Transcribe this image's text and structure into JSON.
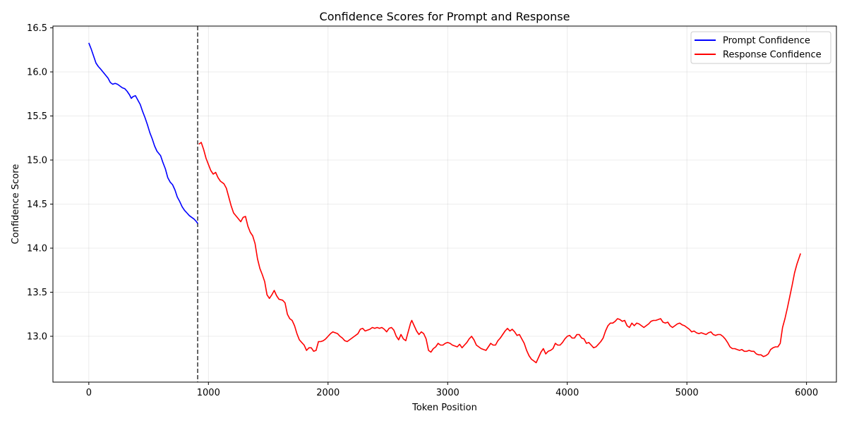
{
  "chart_data": {
    "type": "line",
    "title": "Confidence Scores for Prompt and Response",
    "xlabel": "Token Position",
    "ylabel": "Confidence Score",
    "xlim": [
      -300,
      6250
    ],
    "ylim": [
      12.48,
      16.52
    ],
    "x_ticks": [
      0,
      1000,
      2000,
      3000,
      4000,
      5000,
      6000
    ],
    "y_ticks": [
      13.0,
      13.5,
      14.0,
      14.5,
      15.0,
      15.5,
      16.0,
      16.5
    ],
    "x_tick_labels": [
      "0",
      "1000",
      "2000",
      "3000",
      "4000",
      "5000",
      "6000"
    ],
    "y_tick_labels": [
      "13.0",
      "13.5",
      "14.0",
      "14.5",
      "15.0",
      "15.5",
      "16.0",
      "16.5"
    ],
    "grid": true,
    "legend_position": "top-right",
    "divider_x": 910,
    "series": [
      {
        "name": "Prompt Confidence",
        "color": "#0000ff",
        "points": [
          [
            0,
            16.33
          ],
          [
            20,
            16.26
          ],
          [
            40,
            16.18
          ],
          [
            60,
            16.1
          ],
          [
            80,
            16.06
          ],
          [
            100,
            16.03
          ],
          [
            130,
            15.98
          ],
          [
            160,
            15.93
          ],
          [
            180,
            15.88
          ],
          [
            200,
            15.86
          ],
          [
            220,
            15.87
          ],
          [
            240,
            15.86
          ],
          [
            260,
            15.84
          ],
          [
            280,
            15.82
          ],
          [
            300,
            15.81
          ],
          [
            320,
            15.78
          ],
          [
            340,
            15.74
          ],
          [
            355,
            15.7
          ],
          [
            370,
            15.72
          ],
          [
            390,
            15.73
          ],
          [
            410,
            15.68
          ],
          [
            430,
            15.63
          ],
          [
            450,
            15.55
          ],
          [
            470,
            15.48
          ],
          [
            490,
            15.4
          ],
          [
            510,
            15.31
          ],
          [
            530,
            15.24
          ],
          [
            550,
            15.16
          ],
          [
            570,
            15.1
          ],
          [
            600,
            15.05
          ],
          [
            620,
            14.97
          ],
          [
            640,
            14.9
          ],
          [
            660,
            14.8
          ],
          [
            680,
            14.75
          ],
          [
            700,
            14.72
          ],
          [
            720,
            14.66
          ],
          [
            740,
            14.58
          ],
          [
            760,
            14.53
          ],
          [
            780,
            14.47
          ],
          [
            800,
            14.43
          ],
          [
            820,
            14.4
          ],
          [
            840,
            14.37
          ],
          [
            860,
            14.35
          ],
          [
            880,
            14.33
          ],
          [
            900,
            14.3
          ],
          [
            910,
            14.28
          ]
        ]
      },
      {
        "name": "Response Confidence",
        "color": "#ff0000",
        "points": [
          [
            920,
            15.18
          ],
          [
            940,
            15.2
          ],
          [
            960,
            15.12
          ],
          [
            980,
            15.02
          ],
          [
            1000,
            14.95
          ],
          [
            1020,
            14.88
          ],
          [
            1040,
            14.84
          ],
          [
            1060,
            14.86
          ],
          [
            1080,
            14.8
          ],
          [
            1100,
            14.76
          ],
          [
            1130,
            14.73
          ],
          [
            1150,
            14.68
          ],
          [
            1170,
            14.58
          ],
          [
            1190,
            14.48
          ],
          [
            1210,
            14.4
          ],
          [
            1240,
            14.35
          ],
          [
            1270,
            14.3
          ],
          [
            1290,
            14.35
          ],
          [
            1310,
            14.36
          ],
          [
            1330,
            14.25
          ],
          [
            1350,
            14.18
          ],
          [
            1370,
            14.14
          ],
          [
            1390,
            14.05
          ],
          [
            1410,
            13.88
          ],
          [
            1430,
            13.77
          ],
          [
            1450,
            13.7
          ],
          [
            1470,
            13.62
          ],
          [
            1490,
            13.47
          ],
          [
            1510,
            13.43
          ],
          [
            1530,
            13.47
          ],
          [
            1550,
            13.52
          ],
          [
            1570,
            13.46
          ],
          [
            1590,
            13.42
          ],
          [
            1620,
            13.41
          ],
          [
            1640,
            13.38
          ],
          [
            1660,
            13.25
          ],
          [
            1680,
            13.2
          ],
          [
            1700,
            13.18
          ],
          [
            1720,
            13.12
          ],
          [
            1740,
            13.03
          ],
          [
            1760,
            12.96
          ],
          [
            1780,
            12.93
          ],
          [
            1800,
            12.9
          ],
          [
            1820,
            12.84
          ],
          [
            1840,
            12.87
          ],
          [
            1860,
            12.87
          ],
          [
            1880,
            12.83
          ],
          [
            1900,
            12.84
          ],
          [
            1920,
            12.94
          ],
          [
            1940,
            12.94
          ],
          [
            1960,
            12.95
          ],
          [
            1980,
            12.97
          ],
          [
            2000,
            13.0
          ],
          [
            2020,
            13.03
          ],
          [
            2040,
            13.05
          ],
          [
            2060,
            13.04
          ],
          [
            2080,
            13.03
          ],
          [
            2100,
            13.0
          ],
          [
            2120,
            12.98
          ],
          [
            2140,
            12.95
          ],
          [
            2160,
            12.94
          ],
          [
            2180,
            12.96
          ],
          [
            2200,
            12.98
          ],
          [
            2220,
            13.0
          ],
          [
            2250,
            13.03
          ],
          [
            2270,
            13.08
          ],
          [
            2290,
            13.09
          ],
          [
            2310,
            13.06
          ],
          [
            2330,
            13.07
          ],
          [
            2350,
            13.08
          ],
          [
            2370,
            13.1
          ],
          [
            2390,
            13.09
          ],
          [
            2410,
            13.1
          ],
          [
            2430,
            13.09
          ],
          [
            2450,
            13.1
          ],
          [
            2470,
            13.08
          ],
          [
            2490,
            13.05
          ],
          [
            2510,
            13.09
          ],
          [
            2530,
            13.1
          ],
          [
            2550,
            13.07
          ],
          [
            2570,
            13.0
          ],
          [
            2590,
            12.96
          ],
          [
            2610,
            13.02
          ],
          [
            2630,
            12.97
          ],
          [
            2650,
            12.95
          ],
          [
            2670,
            13.05
          ],
          [
            2690,
            13.15
          ],
          [
            2700,
            13.18
          ],
          [
            2720,
            13.12
          ],
          [
            2740,
            13.06
          ],
          [
            2760,
            13.02
          ],
          [
            2780,
            13.05
          ],
          [
            2800,
            13.03
          ],
          [
            2820,
            12.97
          ],
          [
            2840,
            12.84
          ],
          [
            2860,
            12.82
          ],
          [
            2880,
            12.86
          ],
          [
            2900,
            12.88
          ],
          [
            2920,
            12.92
          ],
          [
            2940,
            12.9
          ],
          [
            2960,
            12.9
          ],
          [
            2980,
            12.92
          ],
          [
            3000,
            12.93
          ],
          [
            3020,
            12.92
          ],
          [
            3040,
            12.9
          ],
          [
            3060,
            12.89
          ],
          [
            3080,
            12.88
          ],
          [
            3100,
            12.91
          ],
          [
            3120,
            12.87
          ],
          [
            3140,
            12.9
          ],
          [
            3160,
            12.93
          ],
          [
            3180,
            12.97
          ],
          [
            3200,
            13.0
          ],
          [
            3220,
            12.96
          ],
          [
            3240,
            12.9
          ],
          [
            3260,
            12.88
          ],
          [
            3280,
            12.86
          ],
          [
            3300,
            12.85
          ],
          [
            3320,
            12.84
          ],
          [
            3340,
            12.88
          ],
          [
            3360,
            12.92
          ],
          [
            3380,
            12.9
          ],
          [
            3400,
            12.9
          ],
          [
            3420,
            12.95
          ],
          [
            3440,
            12.98
          ],
          [
            3460,
            13.02
          ],
          [
            3480,
            13.06
          ],
          [
            3500,
            13.09
          ],
          [
            3520,
            13.06
          ],
          [
            3540,
            13.08
          ],
          [
            3560,
            13.05
          ],
          [
            3580,
            13.01
          ],
          [
            3600,
            13.02
          ],
          [
            3620,
            12.97
          ],
          [
            3640,
            12.92
          ],
          [
            3660,
            12.84
          ],
          [
            3680,
            12.78
          ],
          [
            3700,
            12.74
          ],
          [
            3720,
            12.72
          ],
          [
            3740,
            12.7
          ],
          [
            3760,
            12.76
          ],
          [
            3780,
            12.82
          ],
          [
            3800,
            12.86
          ],
          [
            3820,
            12.8
          ],
          [
            3840,
            12.83
          ],
          [
            3860,
            12.84
          ],
          [
            3880,
            12.86
          ],
          [
            3900,
            12.92
          ],
          [
            3920,
            12.9
          ],
          [
            3940,
            12.9
          ],
          [
            3960,
            12.93
          ],
          [
            3980,
            12.97
          ],
          [
            4000,
            13.0
          ],
          [
            4020,
            13.01
          ],
          [
            4040,
            12.98
          ],
          [
            4060,
            12.98
          ],
          [
            4080,
            13.02
          ],
          [
            4100,
            13.02
          ],
          [
            4120,
            12.98
          ],
          [
            4140,
            12.97
          ],
          [
            4160,
            12.92
          ],
          [
            4180,
            12.93
          ],
          [
            4200,
            12.9
          ],
          [
            4220,
            12.87
          ],
          [
            4240,
            12.88
          ],
          [
            4260,
            12.91
          ],
          [
            4280,
            12.94
          ],
          [
            4300,
            12.98
          ],
          [
            4320,
            13.06
          ],
          [
            4340,
            13.12
          ],
          [
            4360,
            13.15
          ],
          [
            4380,
            13.15
          ],
          [
            4400,
            13.17
          ],
          [
            4420,
            13.2
          ],
          [
            4440,
            13.19
          ],
          [
            4460,
            13.17
          ],
          [
            4480,
            13.18
          ],
          [
            4500,
            13.12
          ],
          [
            4520,
            13.1
          ],
          [
            4540,
            13.15
          ],
          [
            4560,
            13.12
          ],
          [
            4580,
            13.15
          ],
          [
            4600,
            13.14
          ],
          [
            4620,
            13.12
          ],
          [
            4640,
            13.1
          ],
          [
            4660,
            13.12
          ],
          [
            4680,
            13.14
          ],
          [
            4700,
            13.17
          ],
          [
            4720,
            13.18
          ],
          [
            4740,
            13.18
          ],
          [
            4760,
            13.19
          ],
          [
            4780,
            13.2
          ],
          [
            4800,
            13.16
          ],
          [
            4820,
            13.15
          ],
          [
            4840,
            13.16
          ],
          [
            4860,
            13.12
          ],
          [
            4880,
            13.1
          ],
          [
            4900,
            13.12
          ],
          [
            4920,
            13.14
          ],
          [
            4940,
            13.15
          ],
          [
            4960,
            13.13
          ],
          [
            4980,
            13.12
          ],
          [
            5000,
            13.1
          ],
          [
            5020,
            13.08
          ],
          [
            5040,
            13.05
          ],
          [
            5060,
            13.06
          ],
          [
            5080,
            13.04
          ],
          [
            5100,
            13.03
          ],
          [
            5120,
            13.04
          ],
          [
            5140,
            13.03
          ],
          [
            5160,
            13.02
          ],
          [
            5180,
            13.04
          ],
          [
            5200,
            13.05
          ],
          [
            5220,
            13.02
          ],
          [
            5240,
            13.01
          ],
          [
            5260,
            13.02
          ],
          [
            5280,
            13.02
          ],
          [
            5300,
            13.0
          ],
          [
            5320,
            12.97
          ],
          [
            5340,
            12.93
          ],
          [
            5360,
            12.88
          ],
          [
            5380,
            12.86
          ],
          [
            5400,
            12.86
          ],
          [
            5420,
            12.85
          ],
          [
            5440,
            12.84
          ],
          [
            5460,
            12.85
          ],
          [
            5480,
            12.83
          ],
          [
            5500,
            12.83
          ],
          [
            5520,
            12.84
          ],
          [
            5540,
            12.83
          ],
          [
            5560,
            12.83
          ],
          [
            5580,
            12.8
          ],
          [
            5600,
            12.79
          ],
          [
            5620,
            12.79
          ],
          [
            5640,
            12.77
          ],
          [
            5660,
            12.78
          ],
          [
            5680,
            12.8
          ],
          [
            5700,
            12.85
          ],
          [
            5720,
            12.87
          ],
          [
            5740,
            12.88
          ],
          [
            5760,
            12.88
          ],
          [
            5780,
            12.92
          ],
          [
            5800,
            13.1
          ],
          [
            5820,
            13.2
          ],
          [
            5840,
            13.32
          ],
          [
            5860,
            13.45
          ],
          [
            5880,
            13.58
          ],
          [
            5900,
            13.72
          ],
          [
            5920,
            13.82
          ],
          [
            5940,
            13.9
          ],
          [
            5950,
            13.94
          ]
        ]
      }
    ]
  }
}
